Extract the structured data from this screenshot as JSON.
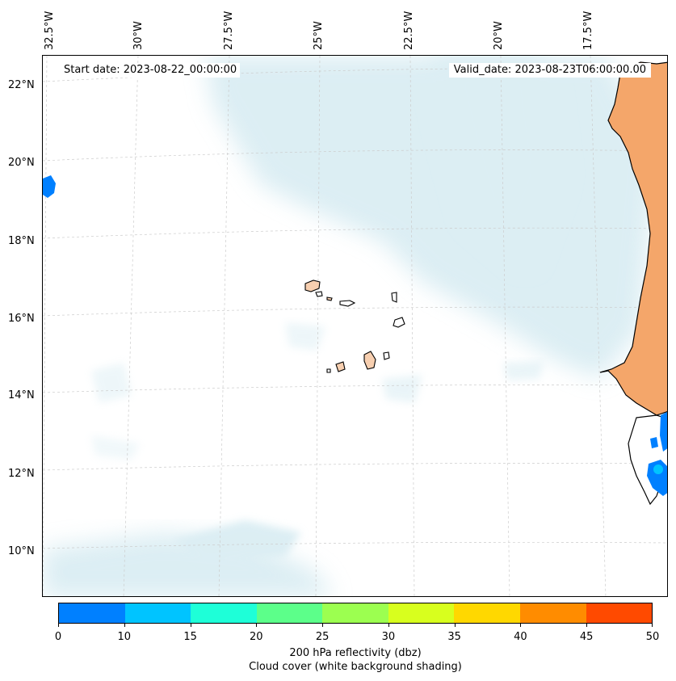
{
  "map": {
    "start_date": "Start date: 2023-08-22_00:00:00",
    "valid_date": "Valid_date: 2023-08-23T06:00:00.00",
    "longitude_labels": [
      "32.5°W",
      "30°W",
      "27.5°W",
      "25°W",
      "22.5°W",
      "20°W",
      "17.5°W"
    ],
    "latitude_labels": [
      "22°N",
      "20°N",
      "18°N",
      "16°N",
      "14°N",
      "12°N",
      "10°N"
    ],
    "land_color": "#f4a66a",
    "island_color": "#f7cfb0",
    "cloud_color": "#bfe0ea"
  },
  "colorbar": {
    "ticks": [
      "0",
      "10",
      "15",
      "20",
      "25",
      "30",
      "35",
      "40",
      "45",
      "50"
    ],
    "colors": [
      "#0080ff",
      "#00c4ff",
      "#1effd8",
      "#5cff8a",
      "#9cff50",
      "#d8ff1e",
      "#ffd800",
      "#ff8c00",
      "#ff4a00"
    ],
    "label_line1": "200 hPa reflectivity (dbz)",
    "label_line2": "Cloud cover (white background shading)"
  }
}
